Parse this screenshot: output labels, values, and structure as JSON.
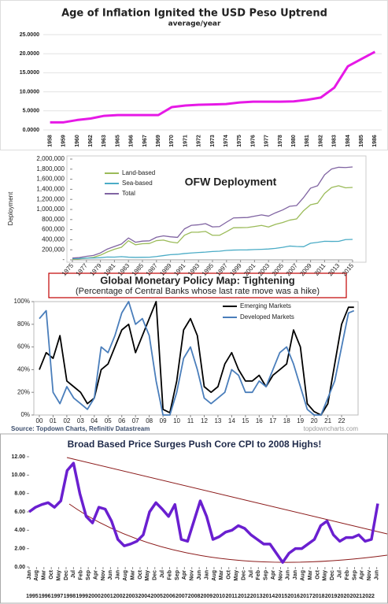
{
  "chart_data": [
    {
      "type": "line",
      "title": "Age of Inflation Ignited the USD Peso Uptrend",
      "subtitle": "average/year",
      "categories": [
        "1958",
        "1959",
        "1960",
        "1962",
        "1963",
        "1965",
        "1966",
        "1967",
        "1969",
        "1970",
        "1971",
        "1972",
        "1973",
        "1974",
        "1975",
        "1976",
        "1977",
        "1978",
        "1980",
        "1981",
        "1982",
        "1983",
        "1984",
        "1985",
        "1986"
      ],
      "values": [
        2.0,
        2.0,
        2.6,
        3.0,
        3.7,
        3.9,
        3.9,
        3.9,
        3.9,
        6.0,
        6.4,
        6.6,
        6.7,
        6.8,
        7.2,
        7.4,
        7.4,
        7.4,
        7.5,
        7.9,
        8.5,
        11.1,
        16.7,
        18.6,
        20.5
      ],
      "color": "#e619e6",
      "ylim": [
        0,
        25
      ],
      "yticks": [
        {
          "value": 0,
          "label": "0.0000"
        },
        {
          "value": 5,
          "label": "5.0000"
        },
        {
          "value": 10,
          "label": "10.0000"
        },
        {
          "value": 15,
          "label": "15.0000"
        },
        {
          "value": 20,
          "label": "20.0000"
        },
        {
          "value": 25,
          "label": "25.0000"
        }
      ],
      "grid": true
    },
    {
      "type": "line",
      "title": "OFW Deployment",
      "ylabel": "Deployment",
      "x": [
        1975,
        1976,
        1977,
        1978,
        1979,
        1980,
        1981,
        1982,
        1983,
        1984,
        1985,
        1986,
        1987,
        1988,
        1989,
        1990,
        1991,
        1992,
        1993,
        1994,
        1995,
        1996,
        1997,
        1998,
        1999,
        2000,
        2001,
        2002,
        2003,
        2004,
        2005,
        2006,
        2007,
        2008,
        2009,
        2010,
        2011,
        2012,
        2013,
        2014,
        2015
      ],
      "series": [
        {
          "name": "Land-based",
          "color": "#9bbb59",
          "values": [
            12000,
            19000,
            34000,
            51000,
            93000,
            158000,
            211000,
            250000,
            380000,
            300000,
            320000,
            325000,
            382000,
            392000,
            355000,
            336000,
            489000,
            549000,
            550000,
            565000,
            488000,
            488000,
            560000,
            638000,
            640000,
            643000,
            662000,
            683000,
            652000,
            705000,
            741000,
            788000,
            812000,
            975000,
            1093000,
            1124000,
            1319000,
            1436000,
            1470000,
            1430000,
            1438000
          ]
        },
        {
          "name": "Sea-based",
          "color": "#4bacc6",
          "values": [
            24000,
            28000,
            36000,
            37000,
            44000,
            57000,
            55000,
            64000,
            54000,
            50000,
            52000,
            53000,
            67000,
            85000,
            103000,
            110000,
            126000,
            137000,
            146000,
            154000,
            166000,
            172000,
            188000,
            194000,
            197000,
            198000,
            205000,
            209000,
            216000,
            229000,
            248000,
            274000,
            266000,
            261000,
            330000,
            347000,
            369000,
            366000,
            367000,
            402000,
            406000
          ]
        },
        {
          "name": "Total",
          "color": "#8064a2",
          "values": [
            36000,
            47000,
            70000,
            88000,
            137000,
            215000,
            266000,
            314000,
            434000,
            350000,
            372000,
            378000,
            449000,
            477000,
            458000,
            446000,
            615000,
            686000,
            696000,
            719000,
            654000,
            660000,
            748000,
            832000,
            837000,
            841000,
            867000,
            892000,
            868000,
            934000,
            989000,
            1062000,
            1078000,
            1236000,
            1423000,
            1471000,
            1688000,
            1802000,
            1837000,
            1832000,
            1844000
          ]
        }
      ],
      "xlim": [
        1975,
        2015
      ],
      "xticks": [
        1975,
        1977,
        1979,
        1981,
        1983,
        1985,
        1987,
        1989,
        1991,
        1993,
        1995,
        1997,
        1999,
        2001,
        2003,
        2005,
        2007,
        2009,
        2011,
        2013,
        2015
      ],
      "ylim": [
        0,
        2000000
      ],
      "yticks": [
        {
          "value": 0,
          "label": "-"
        },
        {
          "value": 200000,
          "label": "200,000"
        },
        {
          "value": 400000,
          "label": "400,000"
        },
        {
          "value": 600000,
          "label": "600,000"
        },
        {
          "value": 800000,
          "label": "800,000"
        },
        {
          "value": 1000000,
          "label": "1,000,000"
        },
        {
          "value": 1200000,
          "label": "1,200,000"
        },
        {
          "value": 1400000,
          "label": "1,400,000"
        },
        {
          "value": 1600000,
          "label": "1,600,000"
        },
        {
          "value": 1800000,
          "label": "1,800,000"
        },
        {
          "value": 2000000,
          "label": "2,000,000"
        }
      ],
      "grid": false,
      "legend": "upper left"
    },
    {
      "type": "line",
      "title": "Global Monetary Policy Map: Tightening",
      "subtitle": "(Percentage of Central Banks whose last rate move was a hike)",
      "source": "Source: Topdown Charts, Refinitiv Datastream",
      "watermark": "topdowncharts.com",
      "x": [
        2000,
        2000.5,
        2001,
        2001.5,
        2002,
        2002.5,
        2003,
        2003.5,
        2004,
        2004.5,
        2005,
        2005.5,
        2006,
        2006.5,
        2007,
        2007.5,
        2008,
        2008.5,
        2009,
        2009.5,
        2010,
        2010.5,
        2011,
        2011.5,
        2012,
        2012.5,
        2013,
        2013.5,
        2014,
        2014.5,
        2015,
        2015.5,
        2016,
        2016.5,
        2017,
        2017.5,
        2018,
        2018.5,
        2019,
        2019.5,
        2020,
        2020.5,
        2021,
        2021.5,
        2022,
        2022.5,
        2022.9
      ],
      "series": [
        {
          "name": "Emerging Markets",
          "color": "#000000",
          "values": [
            40,
            55,
            50,
            70,
            30,
            25,
            20,
            10,
            15,
            40,
            45,
            60,
            75,
            80,
            55,
            70,
            85,
            100,
            5,
            2,
            30,
            75,
            85,
            70,
            25,
            20,
            25,
            45,
            55,
            40,
            30,
            30,
            35,
            25,
            35,
            40,
            45,
            75,
            60,
            10,
            3,
            0,
            10,
            45,
            80,
            95,
            95
          ]
        },
        {
          "name": "Developed Markets",
          "color": "#4a7ebb",
          "values": [
            85,
            92,
            20,
            10,
            25,
            15,
            10,
            5,
            15,
            60,
            55,
            70,
            90,
            100,
            80,
            85,
            70,
            30,
            0,
            0,
            20,
            50,
            60,
            40,
            15,
            10,
            15,
            20,
            40,
            35,
            20,
            20,
            30,
            25,
            40,
            55,
            60,
            45,
            25,
            5,
            0,
            0,
            15,
            30,
            60,
            90,
            92
          ]
        }
      ],
      "xlim": [
        1999.6,
        2023.2
      ],
      "xticks": [
        {
          "value": 2000,
          "label": "00"
        },
        {
          "value": 2001,
          "label": "01"
        },
        {
          "value": 2002,
          "label": "02"
        },
        {
          "value": 2003,
          "label": "03"
        },
        {
          "value": 2004,
          "label": "04"
        },
        {
          "value": 2005,
          "label": "05"
        },
        {
          "value": 2006,
          "label": "06"
        },
        {
          "value": 2007,
          "label": "07"
        },
        {
          "value": 2008,
          "label": "08"
        },
        {
          "value": 2009,
          "label": "09"
        },
        {
          "value": 2010,
          "label": "10"
        },
        {
          "value": 2011,
          "label": "11"
        },
        {
          "value": 2012,
          "label": "12"
        },
        {
          "value": 2013,
          "label": "13"
        },
        {
          "value": 2014,
          "label": "14"
        },
        {
          "value": 2015,
          "label": "15"
        },
        {
          "value": 2016,
          "label": "16"
        },
        {
          "value": 2017,
          "label": "17"
        },
        {
          "value": 2018,
          "label": "18"
        },
        {
          "value": 2019,
          "label": "19"
        },
        {
          "value": 2020,
          "label": "20"
        },
        {
          "value": 2021,
          "label": "21"
        },
        {
          "value": 2022,
          "label": "22"
        }
      ],
      "ylim": [
        0,
        100
      ],
      "yticks": [
        {
          "value": 0,
          "label": "0%"
        },
        {
          "value": 20,
          "label": "20%"
        },
        {
          "value": 40,
          "label": "40%"
        },
        {
          "value": 60,
          "label": "60%"
        },
        {
          "value": 80,
          "label": "80%"
        },
        {
          "value": 100,
          "label": "100%"
        }
      ],
      "grid": false,
      "legend": "upper right"
    },
    {
      "type": "line",
      "title": "Broad Based Price Surges Push Core CPI to 2008 Highs!",
      "x": [
        1995,
        1995.5,
        1996,
        1996.5,
        1997,
        1997.5,
        1998,
        1998.5,
        1999,
        1999.5,
        2000,
        2000.5,
        2001,
        2001.5,
        2002,
        2002.5,
        2003,
        2003.5,
        2004,
        2004.5,
        2005,
        2005.5,
        2006,
        2006.5,
        2007,
        2007.5,
        2008,
        2008.5,
        2009,
        2009.5,
        2010,
        2010.5,
        2011,
        2011.5,
        2012,
        2012.5,
        2013,
        2013.5,
        2014,
        2014.5,
        2015,
        2015.5,
        2016,
        2016.5,
        2017,
        2017.5,
        2018,
        2018.5,
        2019,
        2019.5,
        2020,
        2020.5,
        2021,
        2021.5,
        2022,
        2022.5
      ],
      "values": [
        6.0,
        6.5,
        6.8,
        7.0,
        6.5,
        7.2,
        10.5,
        11.3,
        8.0,
        5.5,
        4.8,
        6.5,
        6.3,
        5.0,
        3.0,
        2.3,
        2.5,
        2.8,
        3.5,
        6.0,
        7.0,
        6.3,
        5.5,
        6.8,
        3.0,
        2.8,
        5.0,
        7.2,
        5.5,
        3.0,
        3.3,
        3.8,
        4.0,
        4.5,
        4.2,
        3.5,
        3.0,
        2.5,
        2.5,
        1.5,
        0.5,
        1.5,
        2.0,
        2.0,
        2.5,
        3.0,
        4.5,
        5.0,
        3.5,
        2.8,
        3.2,
        3.2,
        3.5,
        2.8,
        3.0,
        6.9
      ],
      "color": "#6a1fd0",
      "xlim": [
        1995,
        2022.5
      ],
      "ylim": [
        0,
        12
      ],
      "yticks": [
        {
          "value": 0,
          "label": "0.00"
        },
        {
          "value": 2,
          "label": "2.00"
        },
        {
          "value": 4,
          "label": "4.00"
        },
        {
          "value": 6,
          "label": "6.00"
        },
        {
          "value": 8,
          "label": "8.00"
        },
        {
          "value": 10,
          "label": "10.00"
        },
        {
          "value": 12,
          "label": "12.00"
        }
      ],
      "xticks": [
        {
          "value": 1995.0,
          "label": "Jan"
        },
        {
          "value": 1995.5833,
          "label": "Aug"
        },
        {
          "value": 1996.1667,
          "label": "Mar"
        },
        {
          "value": 1996.75,
          "label": "Oct"
        },
        {
          "value": 1997.3333,
          "label": "May"
        },
        {
          "value": 1997.9167,
          "label": "Dec"
        },
        {
          "value": 1998.5,
          "label": "Jul"
        },
        {
          "value": 1999.0833,
          "label": "Feb"
        },
        {
          "value": 1999.6667,
          "label": "Sep"
        },
        {
          "value": 2000.25,
          "label": "Apr"
        },
        {
          "value": 2000.8333,
          "label": "Nov"
        },
        {
          "value": 2001.4167,
          "label": "Jun"
        },
        {
          "value": 2002.0,
          "label": "Jan"
        },
        {
          "value": 2002.5833,
          "label": "Aug"
        },
        {
          "value": 2003.1667,
          "label": "Mar"
        },
        {
          "value": 2003.75,
          "label": "Oct"
        },
        {
          "value": 2004.3333,
          "label": "May"
        },
        {
          "value": 2004.9167,
          "label": "Dec"
        },
        {
          "value": 2005.5,
          "label": "Jul"
        },
        {
          "value": 2006.0833,
          "label": "Feb"
        },
        {
          "value": 2006.6667,
          "label": "Sep"
        },
        {
          "value": 2007.25,
          "label": "Apr"
        },
        {
          "value": 2007.8333,
          "label": "Nov"
        },
        {
          "value": 2008.4167,
          "label": "Jun"
        },
        {
          "value": 2009.0,
          "label": "Jan"
        },
        {
          "value": 2009.5833,
          "label": "Aug"
        },
        {
          "value": 2010.1667,
          "label": "Mar"
        },
        {
          "value": 2010.75,
          "label": "Oct"
        },
        {
          "value": 2011.3333,
          "label": "May"
        },
        {
          "value": 2011.9167,
          "label": "Dec"
        },
        {
          "value": 2012.5,
          "label": "Jul"
        },
        {
          "value": 2013.0833,
          "label": "Feb"
        },
        {
          "value": 2013.6667,
          "label": "Sep"
        },
        {
          "value": 2014.25,
          "label": "Apr"
        },
        {
          "value": 2014.8333,
          "label": "Nov"
        },
        {
          "value": 2015.4167,
          "label": "Jun"
        },
        {
          "value": 2016.0,
          "label": "Jan"
        },
        {
          "value": 2016.5833,
          "label": "Aug"
        },
        {
          "value": 2017.1667,
          "label": "Mar"
        },
        {
          "value": 2017.75,
          "label": "Oct"
        },
        {
          "value": 2018.3333,
          "label": "May"
        },
        {
          "value": 2018.9167,
          "label": "Dec"
        },
        {
          "value": 2019.5,
          "label": "Jul"
        },
        {
          "value": 2020.0833,
          "label": "Feb"
        },
        {
          "value": 2020.6667,
          "label": "Sep"
        },
        {
          "value": 2021.25,
          "label": "Apr"
        },
        {
          "value": 2021.8333,
          "label": "Nov"
        },
        {
          "value": 2022.4167,
          "label": "Jun"
        }
      ],
      "year_ticks": [
        1995,
        1996,
        1997,
        1998,
        1999,
        2000,
        2001,
        2002,
        2003,
        2004,
        2005,
        2006,
        2007,
        2008,
        2009,
        2010,
        2011,
        2012,
        2013,
        2014,
        2015,
        2016,
        2017,
        2018,
        2019,
        2020,
        2021,
        2022
      ],
      "grid": false
    }
  ]
}
